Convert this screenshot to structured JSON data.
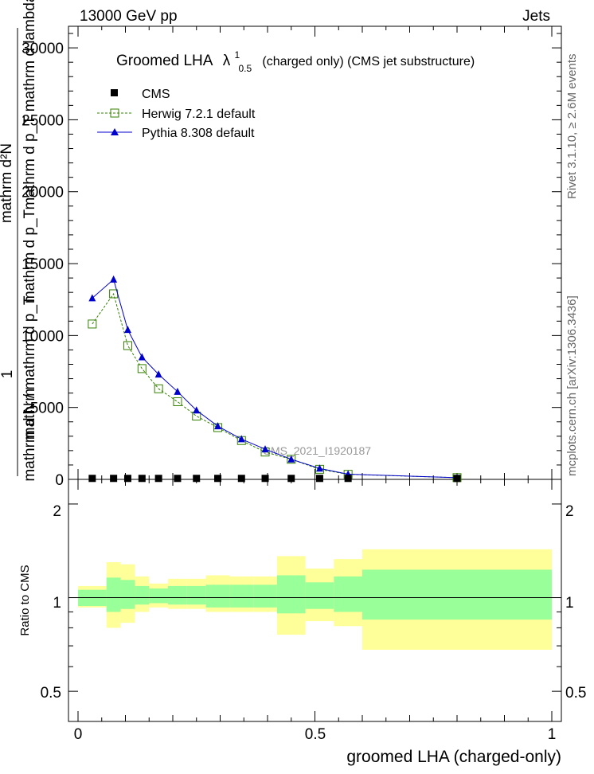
{
  "header": {
    "energy_label": "13000 GeV pp",
    "process_label": "Jets"
  },
  "side_text": {
    "rivet": "Rivet 3.1.10, ≥ 2.6M events",
    "mcplots": "mcplots.cern.ch [arXiv:1306.3436]"
  },
  "main_plot": {
    "title_prefix": "Groomed LHA",
    "title_lambda": "λ",
    "title_sup": "1",
    "title_sub": "0.5",
    "title_suffix": "(charged only) (CMS jet substructure)",
    "ylabel_numerator": "mathrm d²N",
    "ylabel_numerator_2": "mathrm d p_T mathrm d lambda",
    "ylabel_den_1": "mathrm d p_T",
    "ylabel_den_2": "mathrm d N / mathrm d p_T",
    "ylabel_one": "1",
    "ylabel_mathrm": "mathrm",
    "ylabel_T": "T",
    "ylabel_T2": "T",
    "watermark": "CMS_2021_I1920187",
    "yticks": [
      "0",
      "5000",
      "10000",
      "15000",
      "20000",
      "25000",
      "30000"
    ]
  },
  "legend": {
    "cms": "CMS",
    "herwig": "Herwig 7.2.1 default",
    "pythia": "Pythia 8.308 default"
  },
  "ratio_plot": {
    "ylabel": "Ratio to CMS",
    "yticks_left": [
      "0.5",
      "1",
      "2"
    ],
    "yticks_right": [
      "0.5",
      "1",
      "2"
    ]
  },
  "xaxis": {
    "label": "groomed LHA (charged-only)",
    "ticks": [
      "0",
      "0.5",
      "1"
    ]
  },
  "colors": {
    "herwig": "#338000",
    "pythia": "#0000cc",
    "band_inner": "#99ff99",
    "band_outer": "#ffff99"
  },
  "chart_data": {
    "type": "line",
    "xlim": [
      0,
      1
    ],
    "ylim": [
      0,
      30000
    ],
    "ratio_ylim": [
      0.4,
      2.4
    ],
    "ratio_log": true,
    "bins": [
      [
        0,
        0.06
      ],
      [
        0.06,
        0.09
      ],
      [
        0.09,
        0.12
      ],
      [
        0.12,
        0.15
      ],
      [
        0.15,
        0.19
      ],
      [
        0.19,
        0.23
      ],
      [
        0.23,
        0.27
      ],
      [
        0.27,
        0.32
      ],
      [
        0.32,
        0.37
      ],
      [
        0.37,
        0.42
      ],
      [
        0.42,
        0.48
      ],
      [
        0.48,
        0.54
      ],
      [
        0.54,
        0.6
      ],
      [
        0.6,
        1.0
      ]
    ],
    "series": [
      {
        "name": "CMS",
        "x": [
          0.03,
          0.075,
          0.105,
          0.135,
          0.17,
          0.21,
          0.25,
          0.295,
          0.345,
          0.395,
          0.45,
          0.51,
          0.57,
          0.8
        ],
        "y": [
          40,
          40,
          40,
          40,
          40,
          40,
          40,
          40,
          40,
          40,
          40,
          40,
          40,
          40
        ]
      },
      {
        "name": "Herwig 7.2.1 default",
        "x": [
          0.03,
          0.075,
          0.105,
          0.135,
          0.17,
          0.21,
          0.25,
          0.295,
          0.345,
          0.395,
          0.45,
          0.51,
          0.57,
          0.8
        ],
        "y": [
          10800,
          12900,
          9300,
          7700,
          6300,
          5400,
          4400,
          3600,
          2700,
          1900,
          1400,
          700,
          350,
          120
        ]
      },
      {
        "name": "Pythia 8.308 default",
        "x": [
          0.03,
          0.075,
          0.105,
          0.135,
          0.17,
          0.21,
          0.25,
          0.295,
          0.345,
          0.395,
          0.45,
          0.51,
          0.57,
          0.8
        ],
        "y": [
          12600,
          13900,
          10400,
          8500,
          7300,
          6100,
          4800,
          3700,
          2800,
          2100,
          1400,
          760,
          360,
          120
        ]
      }
    ],
    "ratio_bands": {
      "inner": [
        [
          0.94,
          1.06
        ],
        [
          0.9,
          1.16
        ],
        [
          0.92,
          1.14
        ],
        [
          0.95,
          1.09
        ],
        [
          0.96,
          1.07
        ],
        [
          0.95,
          1.09
        ],
        [
          0.95,
          1.09
        ],
        [
          0.93,
          1.1
        ],
        [
          0.93,
          1.1
        ],
        [
          0.93,
          1.1
        ],
        [
          0.89,
          1.18
        ],
        [
          0.92,
          1.12
        ],
        [
          0.9,
          1.17
        ],
        [
          0.85,
          1.23
        ]
      ],
      "outer": [
        [
          0.93,
          1.09
        ],
        [
          0.8,
          1.3
        ],
        [
          0.83,
          1.28
        ],
        [
          0.9,
          1.17
        ],
        [
          0.93,
          1.11
        ],
        [
          0.92,
          1.15
        ],
        [
          0.92,
          1.15
        ],
        [
          0.9,
          1.18
        ],
        [
          0.9,
          1.17
        ],
        [
          0.9,
          1.17
        ],
        [
          0.76,
          1.36
        ],
        [
          0.84,
          1.24
        ],
        [
          0.81,
          1.33
        ],
        [
          0.68,
          1.43
        ]
      ]
    }
  }
}
